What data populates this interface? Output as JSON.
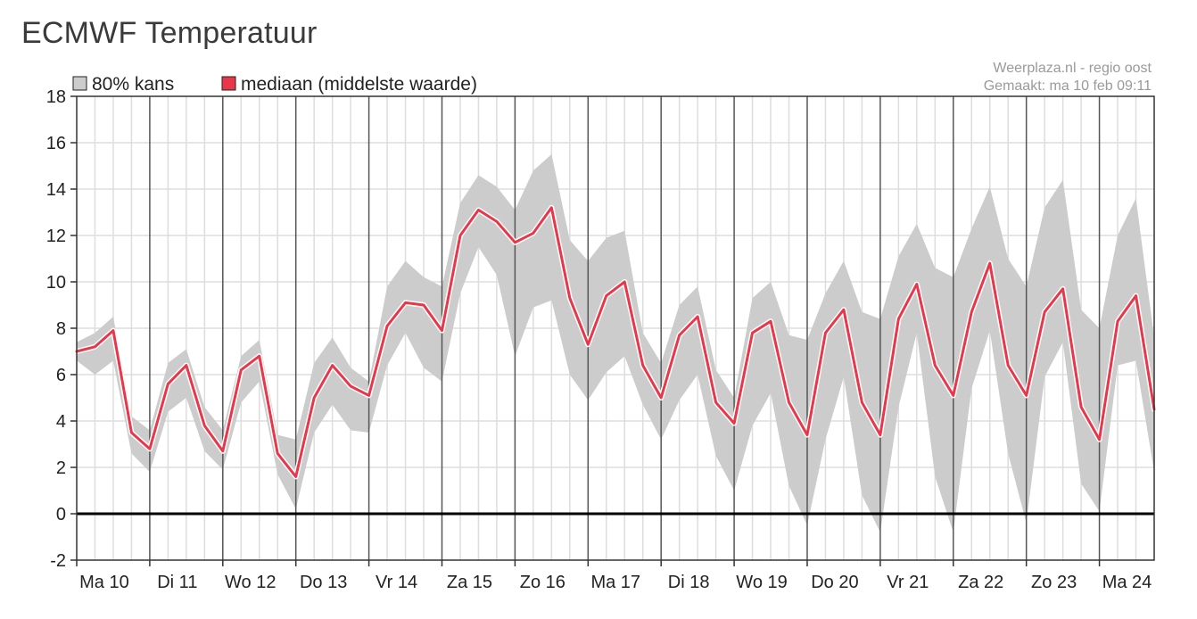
{
  "page": {
    "title": "ECMWF Temperatuur"
  },
  "legend": {
    "band_label": "80% kans",
    "median_label": "mediaan (middelste waarde)",
    "band_color": "#cccccc",
    "median_color": "#e8374a"
  },
  "source": {
    "line1": "Weerplaza.nl - regio oost",
    "line2": "Gemaakt: ma 10 feb 09:11"
  },
  "chart_data": {
    "type": "area",
    "title": "ECMWF Temperatuur",
    "ylim": [
      -2,
      18
    ],
    "yticks": [
      -2,
      0,
      2,
      4,
      6,
      8,
      10,
      12,
      14,
      16,
      18
    ],
    "xlim": [
      0,
      14.75
    ],
    "day_labels": [
      "Ma 10",
      "Di 11",
      "Wo 12",
      "Do 13",
      "Vr 14",
      "Za 15",
      "Zo 16",
      "Ma 17",
      "Di 18",
      "Wo 19",
      "Do 20",
      "Vr 21",
      "Za 22",
      "Zo 23",
      "Ma 24"
    ],
    "grid": true,
    "legend_position": "top-left",
    "x": [
      0.0,
      0.25,
      0.5,
      0.75,
      1.0,
      1.25,
      1.5,
      1.75,
      2.0,
      2.25,
      2.5,
      2.75,
      3.0,
      3.25,
      3.5,
      3.75,
      4.0,
      4.25,
      4.5,
      4.75,
      5.0,
      5.25,
      5.5,
      5.75,
      6.0,
      6.25,
      6.5,
      6.75,
      7.0,
      7.25,
      7.5,
      7.75,
      8.0,
      8.25,
      8.5,
      8.75,
      9.0,
      9.25,
      9.5,
      9.75,
      10.0,
      10.25,
      10.5,
      10.75,
      11.0,
      11.25,
      11.5,
      11.75,
      12.0,
      12.25,
      12.5,
      12.75,
      13.0,
      13.25,
      13.5,
      13.75,
      14.0,
      14.25,
      14.5,
      14.75
    ],
    "series": [
      {
        "name": "mediaan (middelste waarde)",
        "color": "#e8374a",
        "values": [
          7.0,
          7.2,
          7.9,
          3.5,
          2.8,
          5.6,
          6.4,
          3.8,
          2.7,
          6.2,
          6.8,
          2.6,
          1.6,
          5.0,
          6.4,
          5.5,
          5.1,
          8.1,
          9.1,
          9.0,
          7.9,
          12.0,
          13.1,
          12.6,
          11.7,
          12.1,
          13.2,
          9.3,
          7.3,
          9.4,
          10.0,
          6.4,
          5.0,
          7.7,
          8.5,
          4.8,
          3.9,
          7.8,
          8.3,
          4.8,
          3.4,
          7.8,
          8.8,
          4.8,
          3.4,
          8.4,
          9.9,
          6.4,
          5.1,
          8.7,
          10.8,
          6.4,
          5.1,
          8.7,
          9.7,
          4.6,
          3.2,
          8.3,
          9.4,
          4.5
        ]
      },
      {
        "name": "80% kans (boven)",
        "values": [
          7.4,
          7.8,
          8.5,
          4.2,
          3.6,
          6.5,
          7.1,
          4.6,
          3.6,
          6.8,
          7.5,
          3.4,
          3.2,
          6.5,
          7.6,
          6.3,
          5.7,
          9.8,
          10.9,
          10.2,
          9.8,
          13.4,
          14.6,
          14.1,
          13.1,
          14.8,
          15.5,
          11.8,
          10.9,
          11.9,
          12.2,
          7.8,
          6.5,
          9.0,
          9.8,
          6.2,
          5.0,
          9.3,
          10.0,
          7.7,
          7.5,
          9.5,
          10.9,
          8.7,
          8.4,
          11.1,
          12.5,
          10.6,
          10.2,
          12.3,
          14.1,
          11.0,
          9.8,
          13.2,
          14.4,
          8.8,
          8.0,
          12.0,
          13.6,
          7.6
        ]
      },
      {
        "name": "80% kans (onder)",
        "values": [
          6.6,
          6.0,
          6.6,
          2.6,
          1.8,
          4.4,
          5.0,
          2.7,
          1.9,
          4.8,
          5.7,
          1.7,
          0.2,
          3.5,
          4.7,
          3.6,
          3.5,
          6.4,
          7.8,
          6.3,
          5.7,
          9.5,
          11.5,
          10.3,
          6.8,
          8.9,
          9.2,
          6.0,
          4.9,
          6.1,
          6.8,
          4.7,
          3.2,
          4.9,
          6.0,
          2.5,
          1.0,
          3.8,
          5.2,
          1.2,
          -0.5,
          3.2,
          5.9,
          0.8,
          -0.8,
          4.6,
          7.8,
          1.6,
          -0.8,
          5.4,
          7.9,
          2.6,
          -0.4,
          5.9,
          7.4,
          1.3,
          0.1,
          6.4,
          6.6,
          1.8
        ]
      }
    ]
  }
}
